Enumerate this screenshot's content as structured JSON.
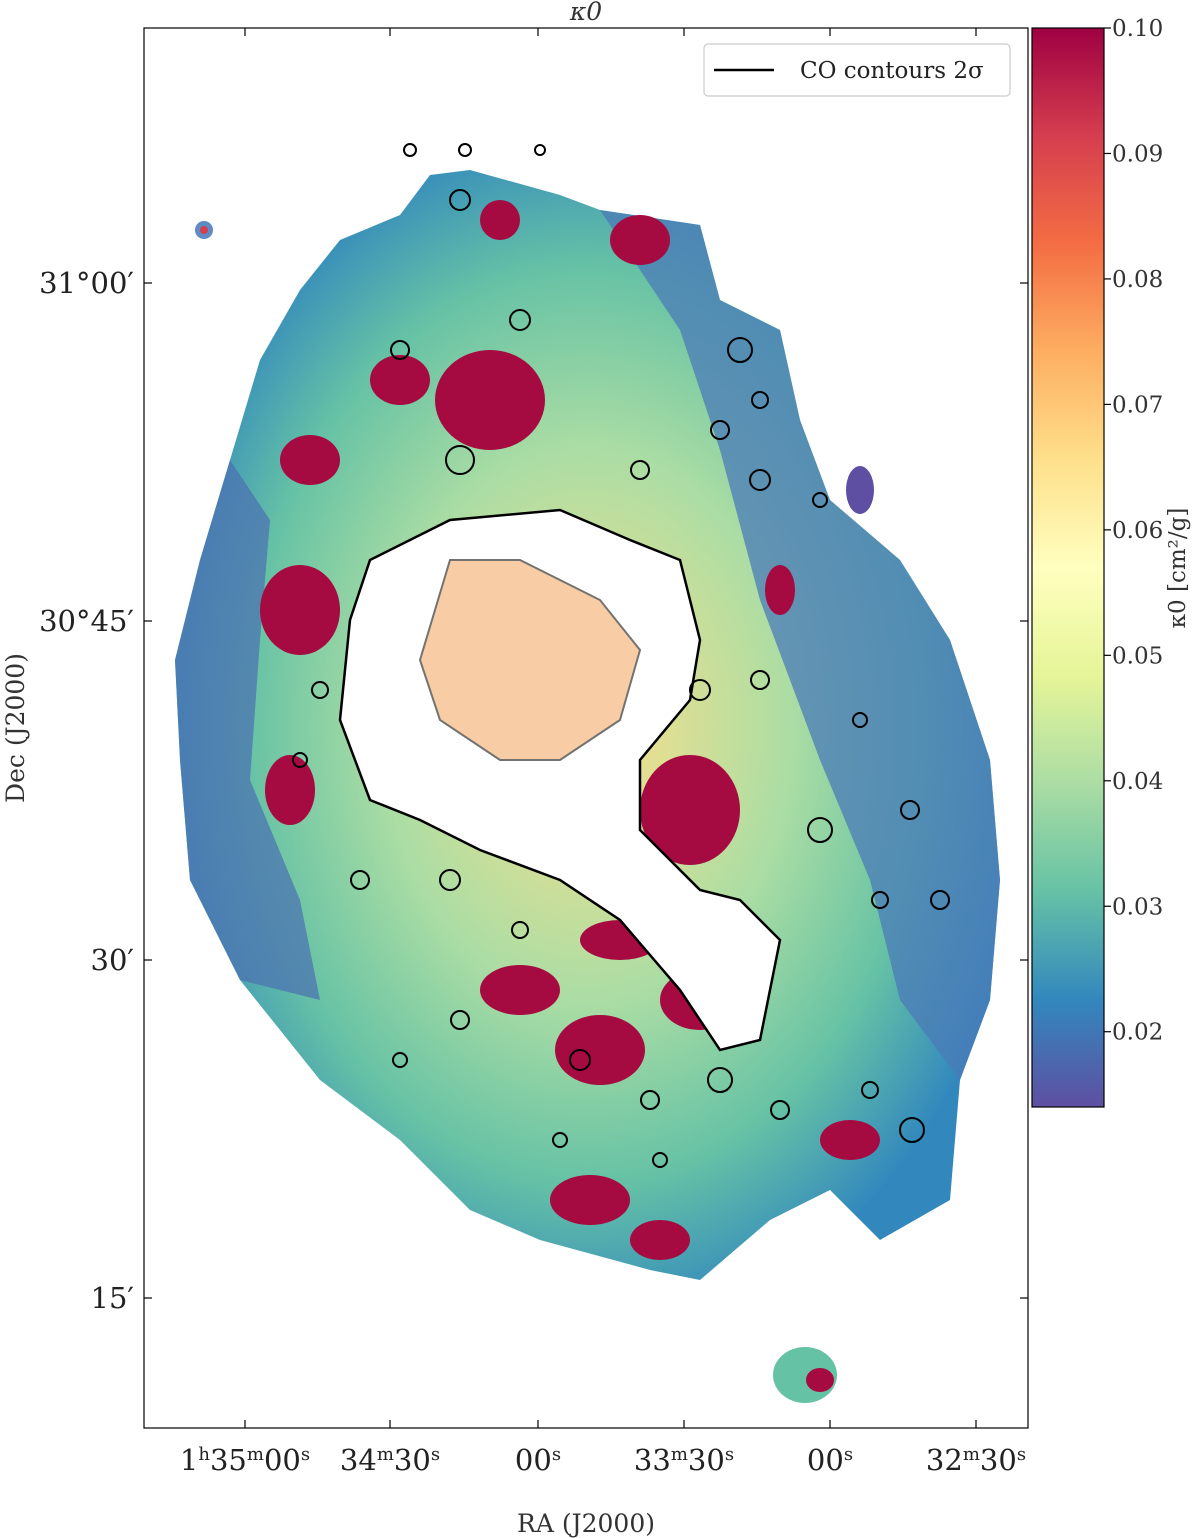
{
  "chart_data": {
    "type": "heatmap",
    "title": "κ0",
    "xlabel": "RA (J2000)",
    "ylabel": "Dec (J2000)",
    "x_ticks": [
      {
        "main": "1",
        "sup1": "h",
        "main2": "35",
        "sup2": "m",
        "main3": "00",
        "sup3": "s"
      },
      {
        "main": "34",
        "sup1": "m",
        "main2": "30",
        "sup2": "s"
      },
      {
        "main": "00",
        "sup1": "s"
      },
      {
        "main": "33",
        "sup1": "m",
        "main2": "30",
        "sup2": "s"
      },
      {
        "main": "00",
        "sup1": "s"
      },
      {
        "main": "32",
        "sup1": "m",
        "main2": "30",
        "sup2": "s"
      }
    ],
    "y_ticks": [
      "31°00′",
      "30°45′",
      "30′",
      "15′"
    ],
    "colorbar": {
      "label": "κ0 [cm²/g]",
      "ticks": [
        "0.10",
        "0.09",
        "0.08",
        "0.07",
        "0.06",
        "0.05",
        "0.04",
        "0.03",
        "0.02"
      ],
      "vmin": 0.014,
      "vmax": 0.1,
      "colormap": "Spectral_r"
    },
    "legend": {
      "label": "CO contours 2σ",
      "placement": "top-right",
      "line_color": "#000000"
    },
    "grid": false
  }
}
